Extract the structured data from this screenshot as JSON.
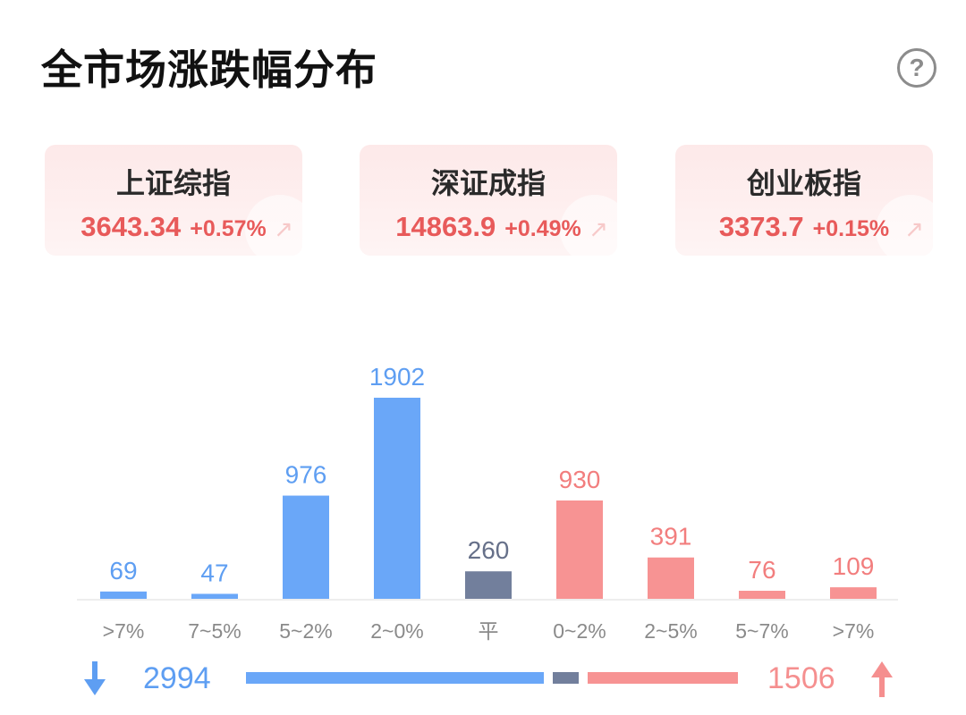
{
  "page": {
    "title": "全市场涨跌幅分布"
  },
  "help": {
    "label": "?"
  },
  "indices": [
    {
      "name": "上证综指",
      "value": "3643.34",
      "change": "+0.57%"
    },
    {
      "name": "深证成指",
      "value": "14863.9",
      "change": "+0.49%"
    },
    {
      "name": "创业板指",
      "value": "3373.7",
      "change": "+0.15%"
    }
  ],
  "chart_data": {
    "type": "bar",
    "title": "全市场涨跌幅分布",
    "xlabel": "",
    "ylabel": "",
    "categories": [
      ">7%",
      "7~5%",
      "5~2%",
      "2~0%",
      "平",
      "0~2%",
      "2~5%",
      "5~7%",
      ">7%"
    ],
    "values": [
      69,
      47,
      976,
      1902,
      260,
      930,
      391,
      76,
      109
    ],
    "groups": [
      "down",
      "down",
      "down",
      "down",
      "flat",
      "up",
      "up",
      "up",
      "up"
    ],
    "ylim": [
      0,
      1902
    ],
    "grid": false,
    "legend": "none"
  },
  "summary": {
    "down_count": "2994",
    "up_count": "1506",
    "flat_count": 260
  },
  "colors": {
    "down": "#6aa7f8",
    "flat": "#727f9c",
    "up": "#f79393",
    "down_text": "#5e9ef2",
    "up_text": "#f27e7e",
    "flat_text": "#667089",
    "axis_label": "#8a8a8a"
  },
  "icons": {
    "down": "arrow-down-icon",
    "up": "arrow-up-icon",
    "help": "question-circle-icon"
  }
}
